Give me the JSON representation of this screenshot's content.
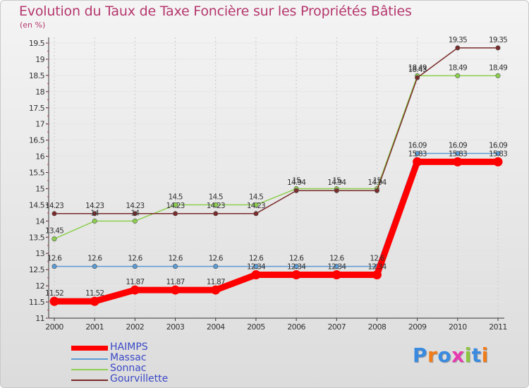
{
  "title": "Evolution du Taux de Taxe Foncière sur les Propriétés Bâties",
  "unit_label": "(en %)",
  "logo": {
    "text": "Proxiti",
    "letters": [
      "P",
      "r",
      "o",
      "x",
      "i",
      "t",
      "i"
    ],
    "colors": [
      "#3a8be0",
      "#f07c1a",
      "#3a8be0",
      "#e63ab0",
      "#8cc63f",
      "#3a8be0",
      "#f07c1a"
    ]
  },
  "chart_data": {
    "type": "line",
    "title": "Evolution du Taux de Taxe Foncière sur les Propriétés Bâties",
    "ylabel": "(en %)",
    "xlabel": "",
    "x": [
      "2000",
      "2001",
      "2002",
      "2003",
      "2004",
      "2005",
      "2006",
      "2007",
      "2008",
      "2009",
      "2010",
      "2011"
    ],
    "ylim": [
      11,
      19.5
    ],
    "yticks": [
      "11",
      "11.5",
      "12",
      "12.5",
      "13",
      "13.5",
      "14",
      "14.5",
      "15",
      "15.5",
      "16",
      "16.5",
      "17",
      "17.5",
      "18",
      "18.5",
      "19",
      "19.5"
    ],
    "grid": true,
    "legend_position": "bottom-left",
    "series": [
      {
        "name": "HAIMPS",
        "color": "#ff0000",
        "values": [
          11.52,
          11.52,
          11.87,
          11.87,
          11.87,
          12.34,
          12.34,
          12.34,
          12.34,
          15.83,
          15.83,
          15.83
        ],
        "labels": [
          "11.52",
          "11.52",
          "11.87",
          "11.87",
          "11.87",
          "12.34",
          "12.34",
          "12.34",
          "12.34",
          "15.83",
          "15.83",
          "15.83"
        ]
      },
      {
        "name": "Massac",
        "color": "#5b9bd5",
        "values": [
          12.6,
          12.6,
          12.6,
          12.6,
          12.6,
          12.6,
          12.6,
          12.6,
          12.6,
          16.09,
          16.09,
          16.09
        ],
        "labels": [
          "12.6",
          "12.6",
          "12.6",
          "12.6",
          "12.6",
          "12.6",
          "12.6",
          "12.6",
          "12.6",
          "16.09",
          "16.09",
          "16.09"
        ]
      },
      {
        "name": "Sonnac",
        "color": "#8ccf4d",
        "values": [
          13.45,
          14,
          14,
          14.5,
          14.5,
          14.5,
          15,
          15,
          15,
          18.49,
          18.49,
          18.49
        ],
        "labels": [
          "13.45",
          "14",
          "14",
          "14.5",
          "14.5",
          "14.5",
          "15",
          "15",
          "15",
          "18.49",
          "18.49",
          "18.49"
        ]
      },
      {
        "name": "Gourvillette",
        "color": "#7a2b2b",
        "values": [
          14.23,
          14.23,
          14.23,
          14.23,
          14.23,
          14.23,
          14.94,
          14.94,
          14.94,
          18.43,
          19.35,
          19.35
        ],
        "labels": [
          "14.23",
          "14.23",
          "14.23",
          "14.23",
          "14.23",
          "14.23",
          "14.94",
          "14.94",
          "14.94",
          "18.43",
          "19.35",
          "19.35"
        ]
      }
    ]
  }
}
